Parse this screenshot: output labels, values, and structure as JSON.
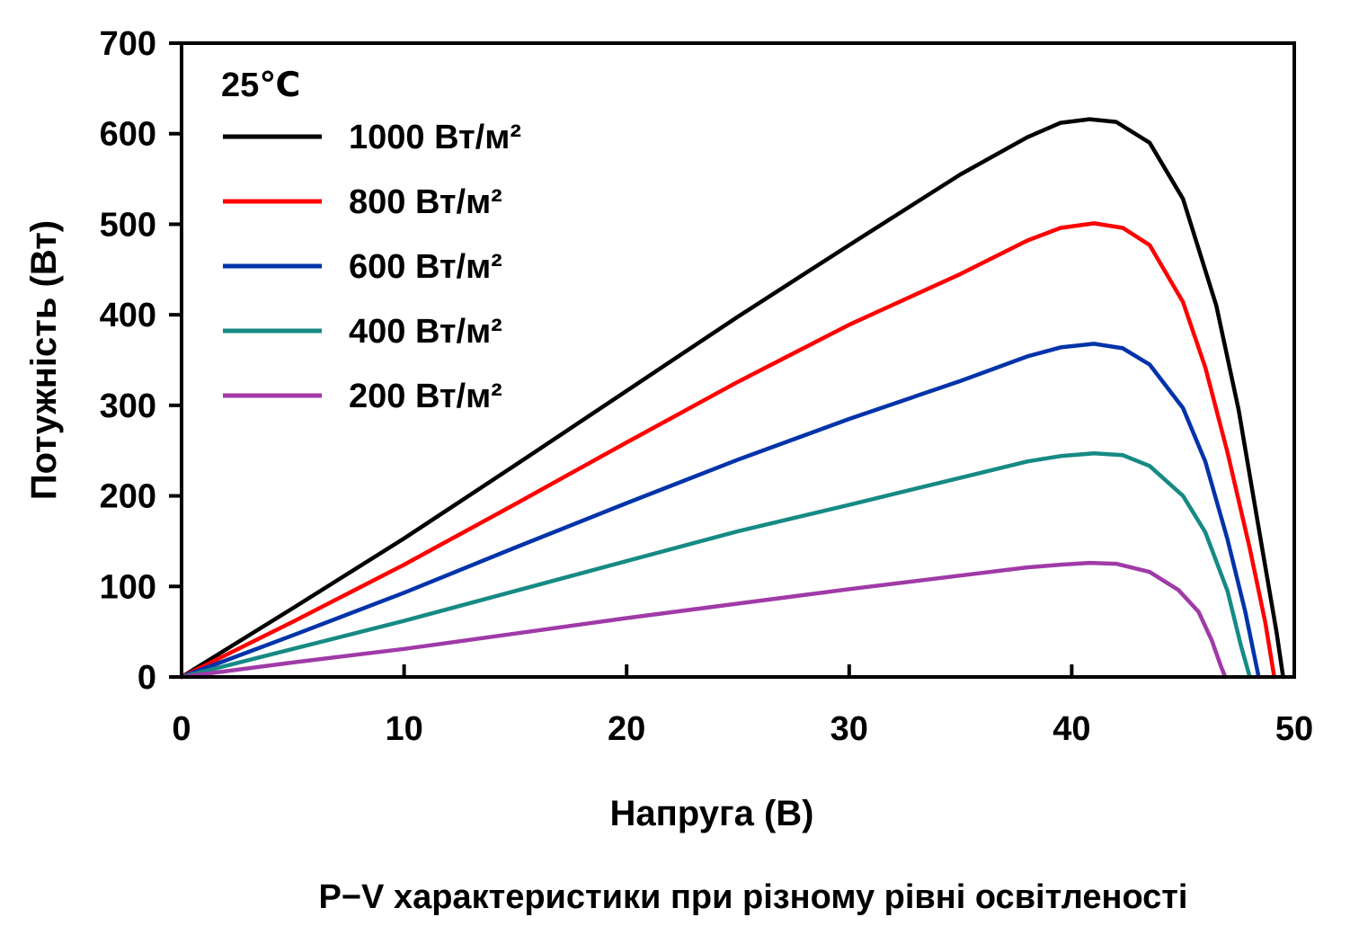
{
  "chart_data": {
    "type": "line",
    "title": "P−V характеристики  при різному рівні освітленості",
    "xlabel": "Напруга  (В)",
    "ylabel": "Потужність (Вт)",
    "xlim": [
      0,
      50
    ],
    "ylim": [
      0,
      700
    ],
    "xticks": [
      0,
      10,
      20,
      30,
      40,
      50
    ],
    "yticks": [
      0,
      100,
      200,
      300,
      400,
      500,
      600,
      700
    ],
    "grid": false,
    "legend_title": "25℃",
    "legend_position": "top-left",
    "series": [
      {
        "name": "1000 Вт/м²",
        "color": "#000000",
        "points": [
          [
            0,
            0
          ],
          [
            5,
            76
          ],
          [
            10,
            153
          ],
          [
            15,
            234
          ],
          [
            20,
            316
          ],
          [
            25,
            398
          ],
          [
            30,
            477
          ],
          [
            35,
            555
          ],
          [
            38,
            596
          ],
          [
            39.5,
            612
          ],
          [
            40.8,
            616
          ],
          [
            42,
            613
          ],
          [
            43.5,
            590
          ],
          [
            45,
            528
          ],
          [
            46.5,
            410
          ],
          [
            47.5,
            295
          ],
          [
            48.5,
            150
          ],
          [
            49.2,
            50
          ],
          [
            49.5,
            0
          ]
        ]
      },
      {
        "name": "800 Вт/м²",
        "color": "#ff0000",
        "points": [
          [
            0,
            0
          ],
          [
            5,
            61
          ],
          [
            10,
            124
          ],
          [
            15,
            191
          ],
          [
            20,
            259
          ],
          [
            25,
            326
          ],
          [
            30,
            389
          ],
          [
            35,
            445
          ],
          [
            38,
            482
          ],
          [
            39.5,
            496
          ],
          [
            41,
            501
          ],
          [
            42.3,
            496
          ],
          [
            43.5,
            477
          ],
          [
            45,
            414
          ],
          [
            46,
            342
          ],
          [
            47,
            248
          ],
          [
            48,
            142
          ],
          [
            48.7,
            60
          ],
          [
            49.1,
            0
          ]
        ]
      },
      {
        "name": "600 Вт/м²",
        "color": "#0033aa",
        "points": [
          [
            0,
            0
          ],
          [
            5,
            46
          ],
          [
            10,
            93
          ],
          [
            15,
            143
          ],
          [
            20,
            192
          ],
          [
            25,
            240
          ],
          [
            30,
            285
          ],
          [
            35,
            327
          ],
          [
            38,
            354
          ],
          [
            39.5,
            364
          ],
          [
            41,
            368
          ],
          [
            42.3,
            363
          ],
          [
            43.5,
            345
          ],
          [
            45,
            297
          ],
          [
            46,
            238
          ],
          [
            47,
            152
          ],
          [
            47.8,
            72
          ],
          [
            48.4,
            0
          ]
        ]
      },
      {
        "name": "400 Вт/м²",
        "color": "#168a84",
        "points": [
          [
            0,
            0
          ],
          [
            5,
            31
          ],
          [
            10,
            62
          ],
          [
            15,
            95
          ],
          [
            20,
            128
          ],
          [
            25,
            161
          ],
          [
            30,
            190
          ],
          [
            35,
            220
          ],
          [
            38,
            238
          ],
          [
            39.5,
            244
          ],
          [
            41,
            247
          ],
          [
            42.3,
            245
          ],
          [
            43.5,
            233
          ],
          [
            45,
            200
          ],
          [
            46,
            160
          ],
          [
            47,
            95
          ],
          [
            47.6,
            35
          ],
          [
            48,
            0
          ]
        ]
      },
      {
        "name": "200 Вт/м²",
        "color": "#a03aa8",
        "points": [
          [
            0,
            0
          ],
          [
            5,
            16
          ],
          [
            10,
            31
          ],
          [
            15,
            48
          ],
          [
            20,
            65
          ],
          [
            25,
            81
          ],
          [
            30,
            97
          ],
          [
            35,
            112
          ],
          [
            38,
            121
          ],
          [
            39.5,
            124
          ],
          [
            40.8,
            126
          ],
          [
            42,
            125
          ],
          [
            43.5,
            116
          ],
          [
            44.8,
            96
          ],
          [
            45.7,
            72
          ],
          [
            46.3,
            40
          ],
          [
            46.7,
            12
          ],
          [
            46.9,
            0
          ]
        ]
      }
    ]
  }
}
